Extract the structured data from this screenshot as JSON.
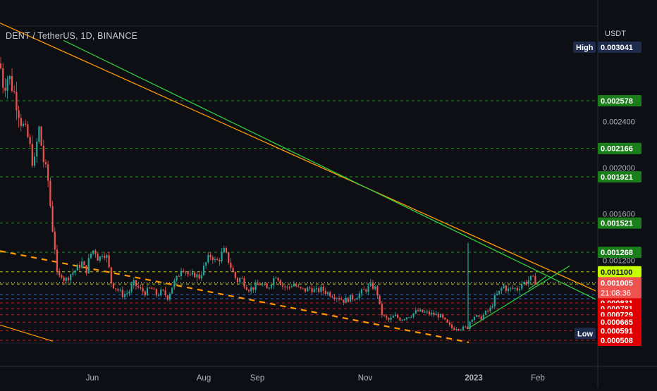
{
  "header": {
    "title": "DENT / TetherUS, 1D, BINANCE"
  },
  "axis": {
    "currency": "USDT"
  },
  "chart_data": {
    "type": "candlestick",
    "symbol": "DENT / TetherUS",
    "interval": "1D",
    "exchange": "BINANCE",
    "ylim": [
      0.00047,
      0.0031
    ],
    "y_tick_labels": [
      "0.002400",
      "0.002000",
      "0.001600",
      "0.001200"
    ],
    "x_tick_labels": [
      "Jun",
      "Aug",
      "Sep",
      "Nov",
      "2023",
      "Feb"
    ],
    "stats": {
      "high": {
        "label": "High",
        "value": "0.003041"
      },
      "low": {
        "label": "Low",
        "value": "0.000567"
      },
      "last": {
        "value": "0.001005",
        "countdown": "21:08:36"
      }
    },
    "horizontal_levels": [
      {
        "value": "0.002578",
        "color": "#1a7f1a",
        "text_color": "#ffffff"
      },
      {
        "value": "0.002166",
        "color": "#1a7f1a",
        "text_color": "#ffffff"
      },
      {
        "value": "0.001921",
        "color": "#1a7f1a",
        "text_color": "#ffffff"
      },
      {
        "value": "0.001521",
        "color": "#1a7f1a",
        "text_color": "#ffffff"
      },
      {
        "value": "0.001268",
        "color": "#1a7f1a",
        "text_color": "#ffffff"
      },
      {
        "value": "0.001100",
        "color": "#c6ff00",
        "text_color": "#111111"
      },
      {
        "value": "0.000994",
        "color": "#c6ff00",
        "text_color": "#111111"
      },
      {
        "value": "0.000902",
        "color": "#1565e0",
        "text_color": "#ffffff"
      },
      {
        "value": "0.000867",
        "color": "#1565e0",
        "text_color": "#ffffff"
      },
      {
        "value": "0.000831",
        "color": "#e00000",
        "text_color": "#ffffff"
      },
      {
        "value": "0.000781",
        "color": "#e00000",
        "text_color": "#ffffff"
      },
      {
        "value": "0.000729",
        "color": "#e00000",
        "text_color": "#ffffff"
      },
      {
        "value": "0.000665",
        "color": "#e00000",
        "text_color": "#ffffff"
      },
      {
        "value": "0.000591",
        "color": "#e00000",
        "text_color": "#ffffff"
      },
      {
        "value": "0.000508",
        "color": "#e00000",
        "text_color": "#ffffff"
      }
    ],
    "price_path": [
      [
        0,
        0.0029
      ],
      [
        5,
        0.0027
      ],
      [
        12,
        0.0028
      ],
      [
        20,
        0.00265
      ],
      [
        30,
        0.0024
      ],
      [
        40,
        0.00225
      ],
      [
        48,
        0.002
      ],
      [
        55,
        0.00235
      ],
      [
        62,
        0.00205
      ],
      [
        68,
        0.0019
      ],
      [
        74,
        0.0015
      ],
      [
        78,
        0.0013
      ],
      [
        82,
        0.001
      ],
      [
        86,
        0.0011
      ],
      [
        92,
        0.00102
      ],
      [
        100,
        0.00108
      ],
      [
        108,
        0.00112
      ],
      [
        116,
        0.00118
      ],
      [
        122,
        0.0011
      ],
      [
        128,
        0.00125
      ],
      [
        134,
        0.0013
      ],
      [
        140,
        0.0012
      ],
      [
        146,
        0.00128
      ],
      [
        152,
        0.00122
      ],
      [
        158,
        0.001
      ],
      [
        166,
        0.00095
      ],
      [
        174,
        0.0009
      ],
      [
        182,
        0.00092
      ],
      [
        190,
        0.001
      ],
      [
        198,
        0.00095
      ],
      [
        206,
        0.00092
      ],
      [
        214,
        0.00096
      ],
      [
        222,
        0.0009
      ],
      [
        230,
        0.00093
      ],
      [
        238,
        0.00088
      ],
      [
        246,
        0.001
      ],
      [
        252,
        0.00105
      ],
      [
        258,
        0.00115
      ],
      [
        264,
        0.0011
      ],
      [
        270,
        0.00105
      ],
      [
        276,
        0.00108
      ],
      [
        282,
        0.00105
      ],
      [
        288,
        0.00112
      ],
      [
        294,
        0.0012
      ],
      [
        300,
        0.00125
      ],
      [
        306,
        0.00118
      ],
      [
        312,
        0.00122
      ],
      [
        318,
        0.00128
      ],
      [
        324,
        0.0012
      ],
      [
        330,
        0.0011
      ],
      [
        336,
        0.00102
      ],
      [
        342,
        0.00105
      ],
      [
        348,
        0.00098
      ],
      [
        354,
        0.00095
      ],
      [
        362,
        0.00097
      ],
      [
        370,
        0.001
      ],
      [
        378,
        0.00094
      ],
      [
        386,
        0.00102
      ],
      [
        392,
        0.00108
      ],
      [
        400,
        0.00098
      ],
      [
        408,
        0.00096
      ],
      [
        416,
        0.001
      ],
      [
        424,
        0.00095
      ],
      [
        432,
        0.00094
      ],
      [
        440,
        0.00096
      ],
      [
        448,
        0.00093
      ],
      [
        456,
        0.00095
      ],
      [
        464,
        0.00092
      ],
      [
        472,
        0.0009
      ],
      [
        480,
        0.00088
      ],
      [
        488,
        0.00085
      ],
      [
        496,
        0.00087
      ],
      [
        504,
        0.00088
      ],
      [
        512,
        0.00092
      ],
      [
        520,
        0.00095
      ],
      [
        526,
        0.00098
      ],
      [
        532,
        0.00096
      ],
      [
        536,
        0.0009
      ],
      [
        540,
        0.00075
      ],
      [
        546,
        0.0007
      ],
      [
        552,
        0.00068
      ],
      [
        560,
        0.00072
      ],
      [
        568,
        0.00069
      ],
      [
        576,
        0.00071
      ],
      [
        584,
        0.00073
      ],
      [
        592,
        0.00076
      ],
      [
        600,
        0.00075
      ],
      [
        608,
        0.00074
      ],
      [
        616,
        0.00073
      ],
      [
        624,
        0.00072
      ],
      [
        630,
        0.00068
      ],
      [
        636,
        0.00064
      ],
      [
        642,
        0.00061
      ],
      [
        648,
        0.00062
      ],
      [
        656,
        0.00061
      ],
      [
        664,
        0.00062
      ],
      [
        668,
        0.0007
      ],
      [
        674,
        0.00072
      ],
      [
        680,
        0.00069
      ],
      [
        688,
        0.00074
      ],
      [
        696,
        0.00078
      ],
      [
        702,
        0.00088
      ],
      [
        708,
        0.00092
      ],
      [
        714,
        0.00098
      ],
      [
        720,
        0.00094
      ],
      [
        728,
        0.00096
      ],
      [
        734,
        0.00095
      ],
      [
        740,
        0.001
      ],
      [
        746,
        0.00101
      ],
      [
        752,
        0.00104
      ],
      [
        758,
        0.00103
      ],
      [
        762,
        0.001
      ]
    ],
    "spike": {
      "x": 664,
      "value": 0.00135
    },
    "trendlines": [
      {
        "name": "orange-upper",
        "color": "#ff9800",
        "dashed": false,
        "p1": [
          0,
          0.00325
        ],
        "p2": [
          845,
          0.000935
        ]
      },
      {
        "name": "green-falling",
        "color": "#2ecc40",
        "dashed": false,
        "p1": [
          90,
          0.0031
        ],
        "p2": [
          845,
          0.000862
        ]
      },
      {
        "name": "orange-mid-dashed",
        "color": "#ff9800",
        "dashed": true,
        "p1": [
          0,
          0.00128
        ],
        "p2": [
          665,
          0.00049
        ]
      },
      {
        "name": "orange-lower",
        "color": "#ff9800",
        "dashed": false,
        "p1": [
          0,
          0.00064
        ],
        "p2": [
          75,
          0.0005
        ]
      },
      {
        "name": "green-rising",
        "color": "#2ecc40",
        "dashed": false,
        "p1": [
          664,
          0.00061
        ],
        "p2": [
          808,
          0.00115
        ]
      },
      {
        "name": "green-short-up",
        "color": "#2ecc40",
        "dashed": false,
        "p1": [
          750,
          0.00095
        ],
        "p2": [
          775,
          0.00106
        ]
      }
    ]
  }
}
